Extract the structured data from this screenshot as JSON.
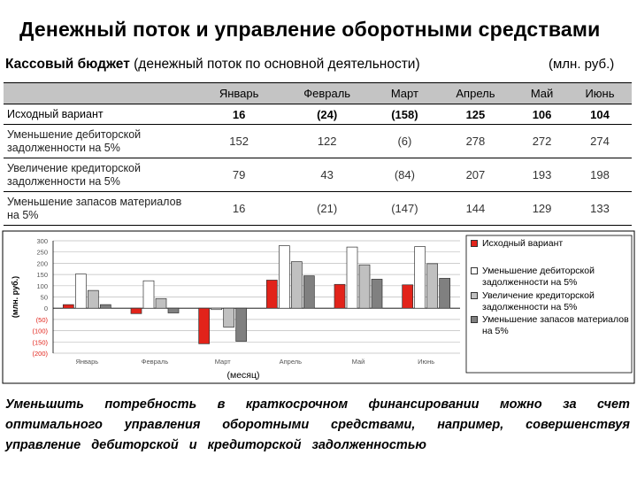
{
  "title": "Денежный поток и управление оборотными средствами",
  "subtitle_bold": "Кассовый бюджет",
  "subtitle_rest": " (денежный поток по основной деятельности)",
  "units": "(млн. руб.)",
  "table": {
    "columns": [
      "Январь",
      "Февраль",
      "Март",
      "Апрель",
      "Май",
      "Июнь"
    ],
    "rows": [
      {
        "label": "Исходный вариант",
        "values": [
          "16",
          "(24)",
          "(158)",
          "125",
          "106",
          "104"
        ]
      },
      {
        "label": "Уменьшение дебиторской задолженности на 5%",
        "values": [
          "152",
          "122",
          "(6)",
          "278",
          "272",
          "274"
        ]
      },
      {
        "label": "Увеличение кредиторской задолженности на 5%",
        "values": [
          "79",
          "43",
          "(84)",
          "207",
          "193",
          "198"
        ]
      },
      {
        "label": "Уменьшение запасов материалов на 5%",
        "values": [
          "16",
          "(21)",
          "(147)",
          "144",
          "129",
          "133"
        ]
      }
    ]
  },
  "chart_data": {
    "type": "bar",
    "categories": [
      "Январь",
      "Февраль",
      "Март",
      "Апрель",
      "Май",
      "Июнь"
    ],
    "series": [
      {
        "name": "Исходный вариант",
        "values": [
          16,
          -24,
          -158,
          125,
          106,
          104
        ],
        "color": "#e2231a"
      },
      {
        "name": "Уменьшение дебиторской задолженности на 5%",
        "values": [
          152,
          122,
          -6,
          278,
          272,
          274
        ],
        "color": "#ffffff"
      },
      {
        "name": "Увеличение кредиторской задолженности на 5%",
        "values": [
          79,
          43,
          -84,
          207,
          193,
          198
        ],
        "color": "#c0c0c0"
      },
      {
        "name": "Уменьшение запасов материалов на 5%",
        "values": [
          16,
          -21,
          -147,
          144,
          129,
          133
        ],
        "color": "#808080"
      }
    ],
    "ylim": [
      -200,
      300
    ],
    "yticks": [
      -200,
      -150,
      -100,
      -50,
      0,
      50,
      100,
      150,
      200,
      250,
      300
    ],
    "ytick_labels": [
      "(200)",
      "(150)",
      "(100)",
      "(50)",
      "0",
      "50",
      "100",
      "150",
      "200",
      "250",
      "300"
    ],
    "ylabel": "(млн. руб.)",
    "xlabel": "(месяц)",
    "grid": true,
    "legend_position": "right"
  },
  "conclusion_lines": [
    [
      "Уменьшить",
      "потребность",
      "в",
      "краткосрочном",
      "финансировании",
      "можно",
      "за",
      "счет"
    ],
    [
      "оптимального",
      "управления",
      "оборотными",
      "средствами,",
      "например,",
      "совершенствуя"
    ],
    [
      "управление",
      "дебиторской",
      "и",
      "кредиторской",
      "задолженностью"
    ]
  ]
}
